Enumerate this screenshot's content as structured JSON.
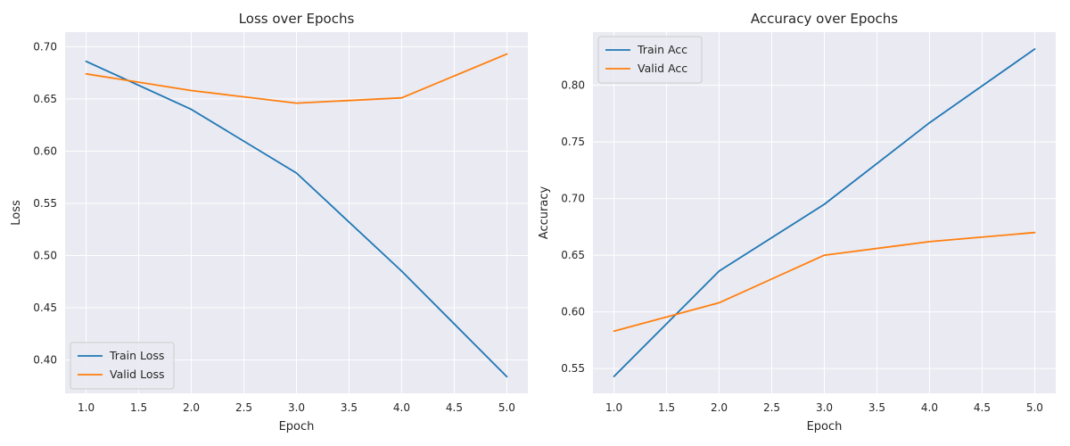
{
  "chart_data": [
    {
      "type": "line",
      "title": "Loss over Epochs",
      "xlabel": "Epoch",
      "ylabel": "Loss",
      "xlim": [
        0.8,
        5.2
      ],
      "ylim": [
        0.368,
        0.714
      ],
      "xticks": [
        1.0,
        1.5,
        2.0,
        2.5,
        3.0,
        3.5,
        4.0,
        4.5,
        5.0
      ],
      "yticks": [
        0.4,
        0.45,
        0.5,
        0.55,
        0.6,
        0.65,
        0.7
      ],
      "x": [
        1,
        2,
        3,
        4,
        5
      ],
      "grid": true,
      "legend_position": "lower-left",
      "series": [
        {
          "name": "Train Loss",
          "color": "#1f77b4",
          "values": [
            0.686,
            0.64,
            0.579,
            0.485,
            0.384
          ]
        },
        {
          "name": "Valid Loss",
          "color": "#ff7f0e",
          "values": [
            0.674,
            0.658,
            0.646,
            0.651,
            0.693
          ]
        }
      ]
    },
    {
      "type": "line",
      "title": "Accuracy over Epochs",
      "xlabel": "Epoch",
      "ylabel": "Accuracy",
      "xlim": [
        0.8,
        5.2
      ],
      "ylim": [
        0.528,
        0.847
      ],
      "xticks": [
        1.0,
        1.5,
        2.0,
        2.5,
        3.0,
        3.5,
        4.0,
        4.5,
        5.0
      ],
      "yticks": [
        0.55,
        0.6,
        0.65,
        0.7,
        0.75,
        0.8
      ],
      "x": [
        1,
        2,
        3,
        4,
        5
      ],
      "grid": true,
      "legend_position": "upper-left",
      "series": [
        {
          "name": "Train Acc",
          "color": "#1f77b4",
          "values": [
            0.543,
            0.636,
            0.695,
            0.767,
            0.832
          ]
        },
        {
          "name": "Valid Acc",
          "color": "#ff7f0e",
          "values": [
            0.583,
            0.608,
            0.65,
            0.662,
            0.67
          ]
        }
      ]
    }
  ]
}
